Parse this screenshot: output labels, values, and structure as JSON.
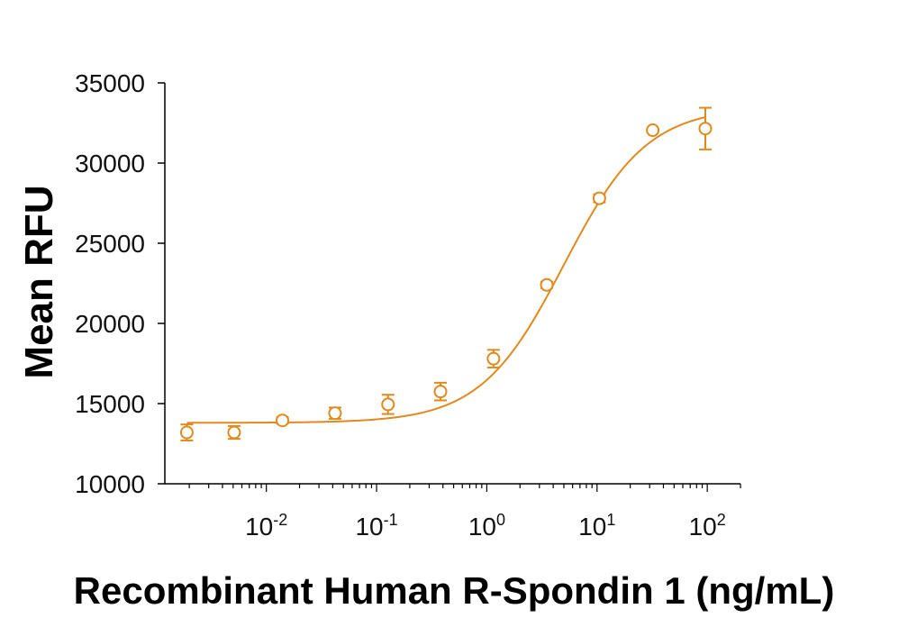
{
  "chart_data": {
    "type": "scatter",
    "xlabel": "Recombinant Human R-Spondin 1 (ng/mL)",
    "ylabel": "Mean RFU",
    "x_scale": "log",
    "xlim": [
      0.0012,
      200
    ],
    "ylim": [
      10000,
      35000
    ],
    "y_ticks": [
      10000,
      15000,
      20000,
      25000,
      30000,
      35000
    ],
    "x_ticks": [
      {
        "value": 0.01,
        "base": "10",
        "exp": "-2"
      },
      {
        "value": 0.1,
        "base": "10",
        "exp": "-1"
      },
      {
        "value": 1,
        "base": "10",
        "exp": "0"
      },
      {
        "value": 10,
        "base": "10",
        "exp": "1"
      },
      {
        "value": 100,
        "base": "10",
        "exp": "2"
      }
    ],
    "grid": false,
    "color": "#E08A1E",
    "points": [
      {
        "x": 0.0019,
        "y": 13200,
        "err": 500
      },
      {
        "x": 0.0051,
        "y": 13200,
        "err": 400
      },
      {
        "x": 0.014,
        "y": 13950,
        "err": 200
      },
      {
        "x": 0.042,
        "y": 14400,
        "err": 350
      },
      {
        "x": 0.127,
        "y": 14950,
        "err": 600
      },
      {
        "x": 0.38,
        "y": 15750,
        "err": 550
      },
      {
        "x": 1.15,
        "y": 17800,
        "err": 550
      },
      {
        "x": 3.5,
        "y": 22400,
        "err": 200
      },
      {
        "x": 10.5,
        "y": 27800,
        "err": 250
      },
      {
        "x": 32,
        "y": 32050,
        "err": 0
      },
      {
        "x": 96,
        "y": 32150,
        "err": 1300
      }
    ],
    "fit": {
      "model": "4PL",
      "bottom": 13800,
      "top": 33500,
      "ec50": 5.0,
      "hill": 1.15
    }
  }
}
